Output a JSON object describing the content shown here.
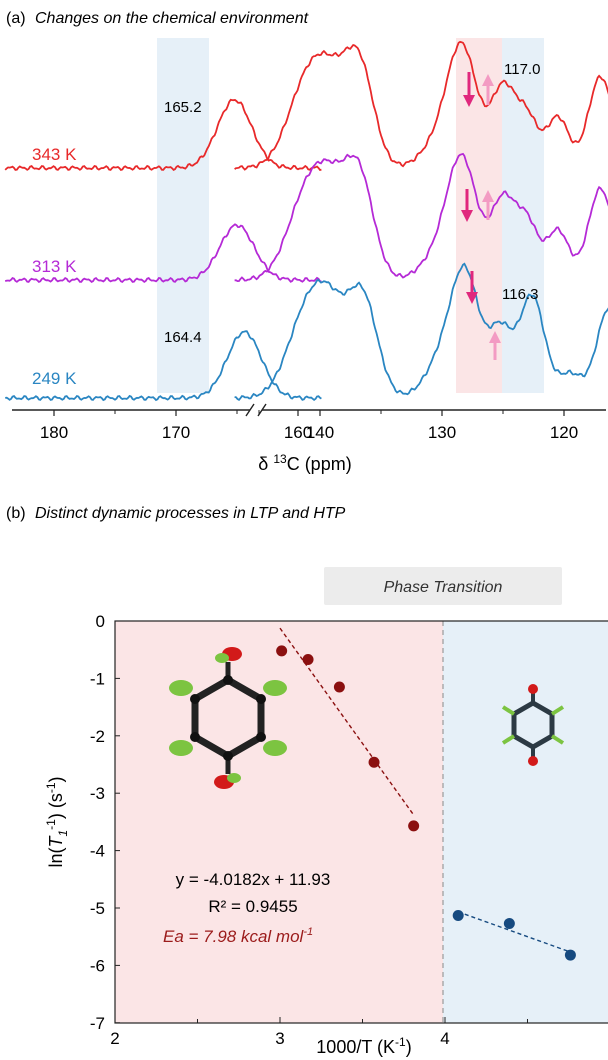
{
  "panel_a": {
    "label": "(a)",
    "title": "Changes on the chemical environment",
    "xlabel_prefix": "δ",
    "xlabel_sup": "13",
    "xlabel_suffix": "C (ppm)",
    "peak_labels": [
      "165.2",
      "117.0",
      "164.4",
      "116.3"
    ]
  },
  "panel_b": {
    "label": "(b)",
    "title": "Distinct dynamic processes in LTP and HTP",
    "banner": "Phase Transition",
    "ylabel_prefix": "ln(",
    "ylabel_T": "T",
    "ylabel_sub": "1",
    "ylabel_sup": "-1",
    "ylabel_suffix": ") (s",
    "ylabel_sup2": "-1",
    "ylabel_end": ")",
    "xlabel_main": "1000/T (K",
    "xlabel_sup": "-1",
    "xlabel_end": ")",
    "fit_equation": "y = -4.0182x + 11.93",
    "r2": "R² = 0.9455",
    "ea_main": "Ea = 7.98 kcal mol",
    "ea_sup": "-1"
  },
  "colors": {
    "red_trace": "#e8292a",
    "purple_trace": "#b52ad6",
    "blue_trace": "#2a86c2",
    "dark_red_points": "#8b1010",
    "navy_points": "#164a80",
    "ltp_bg": "#fbe5e6",
    "htp_bg": "#e6f0f8",
    "arrow_down": "#e0287d",
    "arrow_up": "#f39bc3"
  },
  "chart_data": [
    {
      "type": "line",
      "panel": "a",
      "title": "Changes on the chemical environment",
      "xlabel": "δ 13C (ppm)",
      "ylabel": "",
      "x_reversed": true,
      "x_axis_break": [
        158,
        147
      ],
      "xlim": [
        184,
        106
      ],
      "xticks": [
        180,
        170,
        160,
        140,
        130,
        120,
        110
      ],
      "series": [
        {
          "name": "343 K",
          "color": "#e8292a",
          "peaks": [
            [
              165.2,
              0.62,
              1.4
            ],
            [
              141,
              0.78,
              1.6
            ],
            [
              139,
              0.5,
              1.3
            ],
            [
              136.8,
              0.92,
              1.2
            ],
            [
              130,
              0.25,
              1.5
            ],
            [
              128.3,
              1.0,
              1.2
            ],
            [
              125,
              0.72,
              1.0
            ],
            [
              123,
              0.44,
              0.9
            ],
            [
              120.5,
              0.46,
              0.9
            ],
            [
              117,
              0.83,
              1.0
            ],
            [
              111.8,
              0.58,
              1.0
            ]
          ]
        },
        {
          "name": "313 K",
          "color": "#b52ad6",
          "peaks": [
            [
              165.0,
              0.5,
              1.4
            ],
            [
              141,
              0.78,
              1.6
            ],
            [
              139,
              0.55,
              1.3
            ],
            [
              136.8,
              0.92,
              1.2
            ],
            [
              130,
              0.25,
              1.5
            ],
            [
              128.3,
              1.0,
              1.2
            ],
            [
              125,
              0.72,
              1.0
            ],
            [
              123,
              0.5,
              0.9
            ],
            [
              120.5,
              0.45,
              0.9
            ],
            [
              117,
              0.83,
              1.0
            ],
            [
              111.8,
              0.58,
              1.0
            ]
          ]
        },
        {
          "name": "249 K",
          "color": "#2a86c2",
          "peaks": [
            [
              164.4,
              0.6,
              1.4
            ],
            [
              141,
              0.78,
              1.6
            ],
            [
              139,
              0.55,
              1.3
            ],
            [
              136.5,
              0.9,
              1.2
            ],
            [
              129.5,
              0.45,
              1.5
            ],
            [
              128,
              0.9,
              1.1
            ],
            [
              125.2,
              0.62,
              1.0
            ],
            [
              122.6,
              0.92,
              1.0
            ],
            [
              119.5,
              0.22,
              1.0
            ],
            [
              116.3,
              0.82,
              1.0
            ],
            [
              111.8,
              0.58,
              1.0
            ]
          ]
        }
      ],
      "highlight_bands": [
        [
          168,
          162
        ],
        [
          124.3,
          118.8
        ],
        [
          118.8,
          114.2
        ]
      ],
      "annotations": [
        "165.2",
        "117.0",
        "164.4",
        "116.3"
      ]
    },
    {
      "type": "scatter",
      "panel": "b",
      "title": "Distinct dynamic processes in LTP and HTP",
      "xlabel": "1000/T (K-1)",
      "ylabel": "ln(T1-1) (s-1)",
      "xlim": [
        2,
        5
      ],
      "ylim": [
        -7,
        0
      ],
      "xticks": [
        2,
        3,
        4
      ],
      "yticks": [
        0,
        -1,
        -2,
        -3,
        -4,
        -5,
        -6,
        -7
      ],
      "phase_boundary_x": 3.98,
      "series": [
        {
          "name": "LTP",
          "color": "#8b1010",
          "x": [
            3.01,
            3.17,
            3.36,
            3.57,
            3.81
          ],
          "y": [
            -0.52,
            -0.67,
            -1.15,
            -2.46,
            -3.57
          ],
          "fit": {
            "slope": -4.0182,
            "intercept": 11.93,
            "x_range": [
              3.0,
              3.81
            ]
          }
        },
        {
          "name": "HTP",
          "color": "#164a80",
          "x": [
            4.08,
            4.39,
            4.76
          ],
          "y": [
            -5.13,
            -5.27,
            -5.82
          ],
          "fit": {
            "x_range": [
              4.08,
              4.76
            ]
          }
        }
      ],
      "annotations": [
        "y = -4.0182x + 11.93",
        "R² = 0.9455",
        "Ea = 7.98 kcal mol-1"
      ]
    }
  ]
}
